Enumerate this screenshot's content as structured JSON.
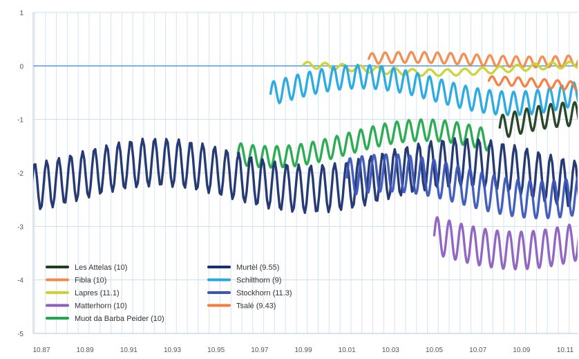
{
  "chart_data": {
    "type": "line",
    "title": "",
    "xlabel": "",
    "ylabel": "",
    "grid": true,
    "legend_placement": "bottom-left",
    "ylim": [
      -5,
      1
    ],
    "yticks": [
      "1",
      "0",
      "-1",
      "-2",
      "-3",
      "-4",
      "-5"
    ],
    "xticks": [
      "10.87",
      "10.89",
      "10.91",
      "10.93",
      "10.95",
      "10.97",
      "10.99",
      "10.01",
      "10.03",
      "10.05",
      "10.07",
      "10.09",
      "10.11"
    ],
    "legend_columns": [
      [
        "Les Attelas (10)",
        "Fibla (10)",
        "Lapres (11.1)",
        "Matterhorn (10)",
        "Muot da Barba Peider (10)"
      ],
      [
        "Murtèl (9.55)",
        "Schilthorn (9)",
        "Stockhorn (11.3)",
        "Tsalé (9.43)"
      ]
    ],
    "series": [
      {
        "name": "Les Attelas (10)",
        "color": "#1f3d1f",
        "x_range": [
          10.08,
          10.12
        ],
        "base": -1.15,
        "amp": 0.22,
        "period": 0.0055
      },
      {
        "name": "Fibla (10)",
        "color": "#f08a4b",
        "x_range": [
          10.02,
          10.12
        ],
        "base": 0.07,
        "amp": 0.1,
        "period": 0.006,
        "trend": 0.02
      },
      {
        "name": "Lapres (11.1)",
        "color": "#c9d432",
        "x_range": [
          9.99,
          10.12
        ],
        "base": -0.05,
        "amp": 0.06,
        "period": 0.008
      },
      {
        "name": "Matterhorn (10)",
        "color": "#8b5fbf",
        "x_range": [
          10.05,
          10.12
        ],
        "base": -3.2,
        "amp": 0.35,
        "period": 0.0055
      },
      {
        "name": "Muot da Barba Peider (10)",
        "color": "#22a84a",
        "x_range": [
          10.96,
          10.075
        ],
        "base": -1.45,
        "amp": 0.2,
        "period": 0.0055
      },
      {
        "name": "Murtèl (9.55)",
        "color": "#1a2f6b",
        "x_range": [
          10.86,
          10.12
        ],
        "base": -2.05,
        "amp": 0.45,
        "period": 0.0055
      },
      {
        "name": "Schilthorn (9)",
        "color": "#23a8e0",
        "x_range": [
          9.975,
          10.12
        ],
        "base": -0.45,
        "amp": 0.22,
        "period": 0.0055
      },
      {
        "name": "Stockhorn (11.3)",
        "color": "#3b56b8",
        "x_range": [
          10.01,
          10.12
        ],
        "base": -2.25,
        "amp": 0.35,
        "period": 0.0055
      },
      {
        "name": "Tsalé (9.43)",
        "color": "#f47b3c",
        "x_range": [
          10.075,
          10.12
        ],
        "base": -0.35,
        "amp": 0.08,
        "period": 0.006
      }
    ]
  }
}
